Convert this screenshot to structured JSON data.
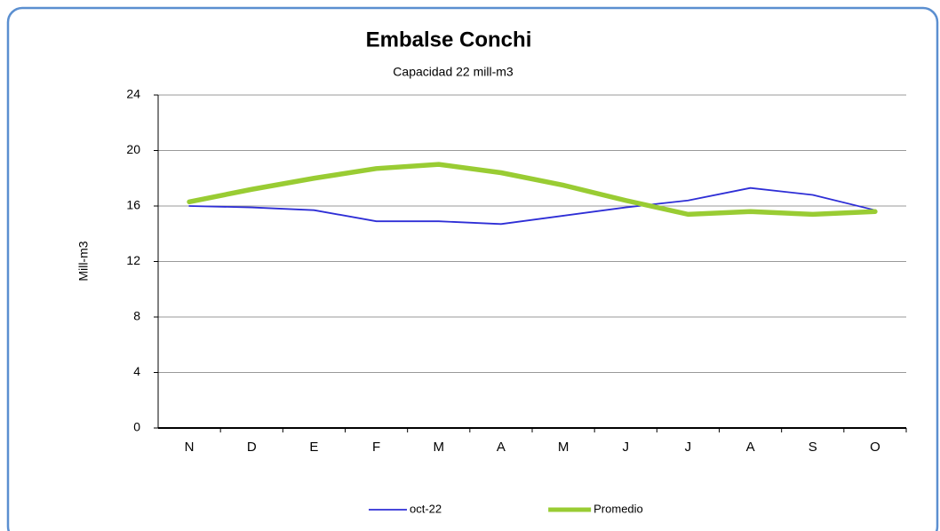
{
  "chart_data": {
    "type": "line",
    "title": "Embalse Conchi",
    "subtitle": "Capacidad 22 mill-m3",
    "y_label": "Mill-m3",
    "categories": [
      "N",
      "D",
      "E",
      "F",
      "M",
      "A",
      "M",
      "J",
      "J",
      "A",
      "S",
      "O"
    ],
    "series": [
      {
        "name": "oct-22",
        "color": "#2e2ed6",
        "values": [
          16.0,
          15.9,
          15.7,
          14.9,
          14.9,
          14.7,
          15.3,
          15.9,
          16.4,
          17.3,
          16.8,
          15.7
        ]
      },
      {
        "name": "Promedio",
        "color": "#99cc33",
        "values": [
          16.3,
          17.2,
          18.0,
          18.7,
          19.0,
          18.4,
          17.5,
          16.4,
          15.4,
          15.6,
          15.4,
          15.6
        ]
      }
    ],
    "ylim": [
      0,
      24
    ],
    "yticks": [
      0,
      4,
      8,
      12,
      16,
      20,
      24
    ],
    "grid": true,
    "legend": "bottom"
  }
}
